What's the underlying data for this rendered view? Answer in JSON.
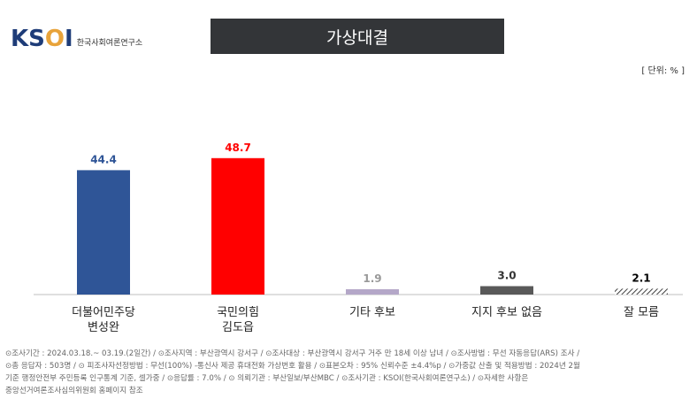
{
  "logo": {
    "mark": "KSOI",
    "org_name": "한국사회여론연구소"
  },
  "title": "가상대결",
  "unit": "[ 단위: % ]",
  "chart_data": {
    "type": "bar",
    "title": "가상대결",
    "unit": "[ 단위: % ]",
    "categories": [
      [
        "더불어민주당",
        "변성완"
      ],
      [
        "국민의힘",
        "김도읍"
      ],
      [
        "기타 후보"
      ],
      [
        "지지 후보 없음"
      ],
      [
        "잘 모름"
      ]
    ],
    "values": [
      44.4,
      48.7,
      1.9,
      3.0,
      2.1
    ],
    "value_labels": [
      "44.4",
      "48.7",
      "1.9",
      "3.0",
      "2.1"
    ],
    "colors": [
      "#2f5597",
      "#ff0000",
      "#b4a7c8",
      "#595959",
      "#404040"
    ],
    "label_colors": [
      "#2f5597",
      "#ff0000",
      "#999999",
      "#333333",
      "#000000"
    ],
    "patterns": [
      false,
      false,
      false,
      false,
      true
    ],
    "ylim": [
      0,
      60
    ],
    "grid": false,
    "legend": "none"
  },
  "footer": {
    "lines": [
      "⊙조사기간 : 2024.03.18.~ 03.19.(2일간)   / ⊙조사지역 : 부산광역시 강서구 / ⊙조사대상 : 부산광역시 강서구 거주 만 18세 이상 남녀 / ⊙조사방법 : 무선 자동응답(ARS) 조사 /",
      "⊙총 응답자 : 503명 / ⊙ 피조사자선정방법 : 무선(100%) -통신사 제공 휴대전화 가상번호 활용 / ⊙표본오차 : 95% 신뢰수준 ±4.4%p / ⊙가중값 산출 및 적용방법 : 2024년 2월",
      "기준 행정안전부 주민등록 인구통계 기준, 셀가중 / ⊙응답률 : 7.0% / ⊙ 의뢰기관 : 부산일보/부산MBC / ⊙조사기관 : KSOI(한국사회여론연구소) / ⊙자세한 사항은",
      "중앙선거여론조사심의위원회 홈페이지 참조"
    ]
  }
}
